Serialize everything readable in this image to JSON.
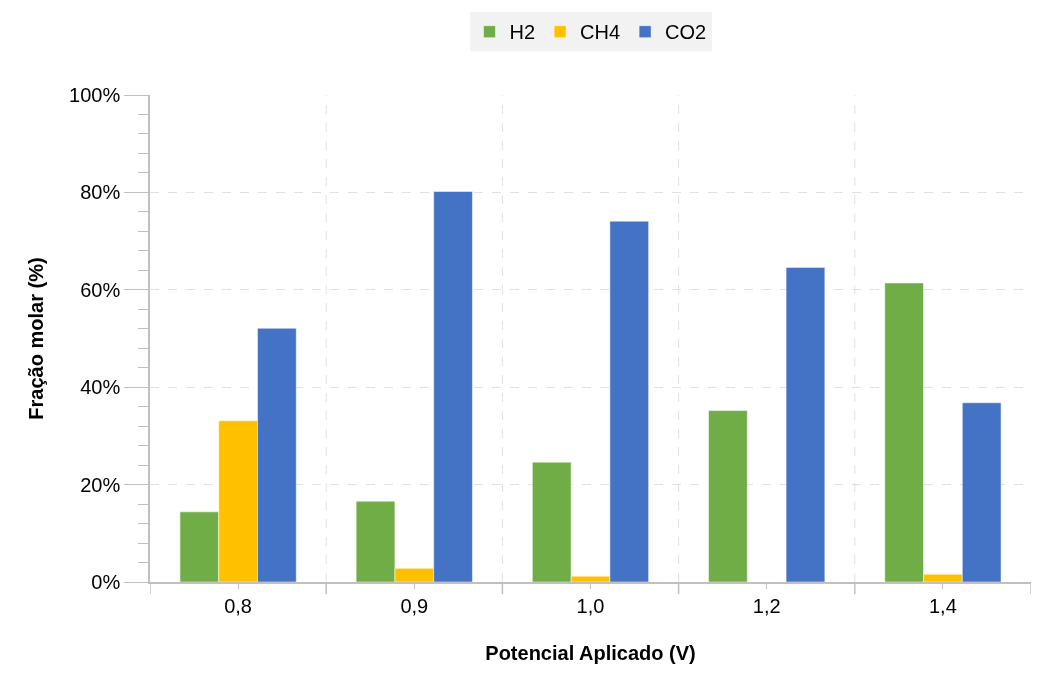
{
  "chart_data": {
    "type": "bar",
    "xlabel": "Potencial Aplicado (V)",
    "ylabel": "Fração molar (%)",
    "categories": [
      "0,8",
      "0,9",
      "1,0",
      "1,2",
      "1,4"
    ],
    "series": [
      {
        "name": "H2",
        "color": "#70ad47",
        "values": [
          14.4,
          16.6,
          24.6,
          35.2,
          61.4
        ]
      },
      {
        "name": "CH4",
        "color": "#ffc000",
        "values": [
          33.1,
          2.8,
          1.2,
          null,
          1.6
        ]
      },
      {
        "name": "CO2",
        "color": "#4472c4",
        "values": [
          52.1,
          80.2,
          74.1,
          64.6,
          36.8
        ]
      }
    ],
    "ylim": [
      0,
      100
    ],
    "yticks": [
      {
        "value": 0,
        "label": "0%"
      },
      {
        "value": 20,
        "label": "20%"
      },
      {
        "value": 40,
        "label": "40%"
      },
      {
        "value": 60,
        "label": "60%"
      },
      {
        "value": 80,
        "label": "80%"
      },
      {
        "value": 100,
        "label": "100%"
      }
    ],
    "grid": true,
    "legend": "top"
  }
}
